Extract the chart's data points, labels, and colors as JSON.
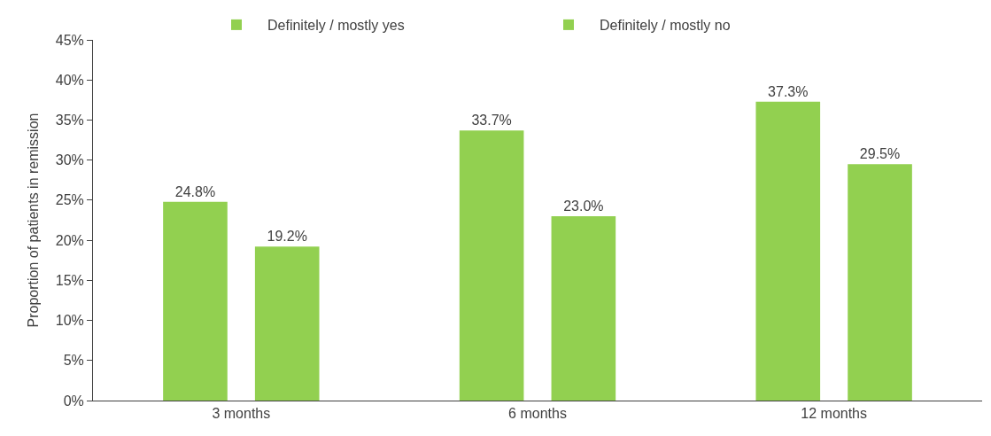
{
  "chart_data": {
    "type": "bar",
    "ylabel": "Proportion of patients in remission",
    "categories": [
      "3 months",
      "6 months",
      "12 months"
    ],
    "series": [
      {
        "name": "Definitely / mostly yes",
        "color": "#92d050",
        "values": [
          24.8,
          33.7,
          37.3
        ],
        "value_labels": [
          "24.8%",
          "33.7%",
          "37.3%"
        ]
      },
      {
        "name": "Definitely / mostly no",
        "color": "#92d050",
        "values": [
          19.2,
          23.0,
          29.5
        ],
        "value_labels": [
          "19.2%",
          "23.0%",
          "29.5%"
        ]
      }
    ],
    "ylim": [
      0,
      45
    ],
    "yticks": [
      {
        "value": 0,
        "label": "0%"
      },
      {
        "value": 5,
        "label": "5%"
      },
      {
        "value": 10,
        "label": "10%"
      },
      {
        "value": 15,
        "label": "15%"
      },
      {
        "value": 20,
        "label": "20%"
      },
      {
        "value": 25,
        "label": "25%"
      },
      {
        "value": 30,
        "label": "30%"
      },
      {
        "value": 35,
        "label": "35%"
      },
      {
        "value": 40,
        "label": "40%"
      },
      {
        "value": 45,
        "label": "45%"
      }
    ],
    "grid": false,
    "legend": "top"
  }
}
